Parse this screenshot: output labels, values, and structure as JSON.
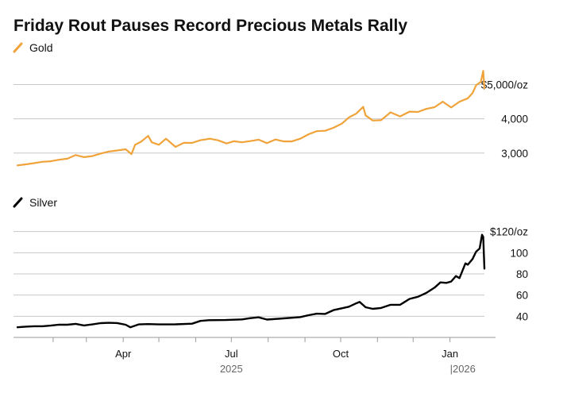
{
  "chart_data": {
    "title": "Friday Rout Pauses Record Precious Metals Rally",
    "type": "line",
    "x_axis": {
      "ticks": [
        "Apr",
        "Jul",
        "Oct",
        "Jan"
      ],
      "years": [
        "2025",
        "|2026"
      ]
    },
    "panels": [
      {
        "series_name": "Gold",
        "color": "#f0a33a",
        "unit_tick": "$5,000/oz",
        "ytick_labels": [
          "$5,000/oz",
          "4,000",
          "3,000"
        ],
        "yticks": [
          5000,
          4000,
          3000
        ],
        "ylim": [
          2600,
          5500
        ],
        "points": [
          [
            "2025-01-02",
            2640
          ],
          [
            "2025-01-09",
            2670
          ],
          [
            "2025-01-16",
            2705
          ],
          [
            "2025-01-23",
            2745
          ],
          [
            "2025-01-30",
            2760
          ],
          [
            "2025-02-06",
            2805
          ],
          [
            "2025-02-13",
            2835
          ],
          [
            "2025-02-20",
            2940
          ],
          [
            "2025-02-27",
            2880
          ],
          [
            "2025-03-06",
            2910
          ],
          [
            "2025-03-13",
            2985
          ],
          [
            "2025-03-20",
            3045
          ],
          [
            "2025-03-27",
            3075
          ],
          [
            "2025-04-03",
            3110
          ],
          [
            "2025-04-08",
            2970
          ],
          [
            "2025-04-11",
            3240
          ],
          [
            "2025-04-16",
            3330
          ],
          [
            "2025-04-22",
            3500
          ],
          [
            "2025-04-25",
            3315
          ],
          [
            "2025-05-01",
            3240
          ],
          [
            "2025-05-07",
            3420
          ],
          [
            "2025-05-15",
            3180
          ],
          [
            "2025-05-22",
            3300
          ],
          [
            "2025-05-29",
            3295
          ],
          [
            "2025-06-05",
            3375
          ],
          [
            "2025-06-13",
            3420
          ],
          [
            "2025-06-20",
            3370
          ],
          [
            "2025-06-27",
            3280
          ],
          [
            "2025-07-03",
            3345
          ],
          [
            "2025-07-10",
            3315
          ],
          [
            "2025-07-17",
            3350
          ],
          [
            "2025-07-24",
            3390
          ],
          [
            "2025-07-31",
            3290
          ],
          [
            "2025-08-07",
            3395
          ],
          [
            "2025-08-14",
            3340
          ],
          [
            "2025-08-21",
            3340
          ],
          [
            "2025-08-28",
            3420
          ],
          [
            "2025-09-04",
            3550
          ],
          [
            "2025-09-11",
            3640
          ],
          [
            "2025-09-18",
            3650
          ],
          [
            "2025-09-25",
            3740
          ],
          [
            "2025-10-02",
            3860
          ],
          [
            "2025-10-08",
            4040
          ],
          [
            "2025-10-14",
            4150
          ],
          [
            "2025-10-20",
            4350
          ],
          [
            "2025-10-22",
            4100
          ],
          [
            "2025-10-28",
            3950
          ],
          [
            "2025-11-04",
            3960
          ],
          [
            "2025-11-12",
            4190
          ],
          [
            "2025-11-20",
            4070
          ],
          [
            "2025-11-28",
            4210
          ],
          [
            "2025-12-05",
            4200
          ],
          [
            "2025-12-12",
            4290
          ],
          [
            "2025-12-19",
            4340
          ],
          [
            "2025-12-26",
            4500
          ],
          [
            "2026-01-02",
            4330
          ],
          [
            "2026-01-09",
            4500
          ],
          [
            "2026-01-16",
            4600
          ],
          [
            "2026-01-20",
            4750
          ],
          [
            "2026-01-23",
            4980
          ],
          [
            "2026-01-27",
            5080
          ],
          [
            "2026-01-29",
            5400
          ],
          [
            "2026-01-30",
            4890
          ]
        ]
      },
      {
        "series_name": "Silver",
        "color": "#000000",
        "unit_tick": "$120/oz",
        "ytick_labels": [
          "$120/oz",
          "100",
          "80",
          "60",
          "40"
        ],
        "yticks": [
          120,
          100,
          80,
          60,
          40
        ],
        "ylim": [
          20,
          125
        ],
        "points": [
          [
            "2025-01-02",
            29.6
          ],
          [
            "2025-01-09",
            30.2
          ],
          [
            "2025-01-16",
            30.6
          ],
          [
            "2025-01-23",
            30.6
          ],
          [
            "2025-01-30",
            31.2
          ],
          [
            "2025-02-06",
            32.1
          ],
          [
            "2025-02-13",
            32.0
          ],
          [
            "2025-02-20",
            32.8
          ],
          [
            "2025-02-27",
            31.3
          ],
          [
            "2025-03-06",
            32.3
          ],
          [
            "2025-03-13",
            33.5
          ],
          [
            "2025-03-20",
            33.8
          ],
          [
            "2025-03-27",
            33.6
          ],
          [
            "2025-04-03",
            32.0
          ],
          [
            "2025-04-07",
            29.6
          ],
          [
            "2025-04-14",
            32.3
          ],
          [
            "2025-04-22",
            32.6
          ],
          [
            "2025-05-01",
            32.3
          ],
          [
            "2025-05-15",
            32.4
          ],
          [
            "2025-05-29",
            33.0
          ],
          [
            "2025-06-05",
            35.6
          ],
          [
            "2025-06-12",
            36.3
          ],
          [
            "2025-06-26",
            36.4
          ],
          [
            "2025-07-10",
            37.0
          ],
          [
            "2025-07-17",
            38.2
          ],
          [
            "2025-07-24",
            39.0
          ],
          [
            "2025-07-31",
            36.9
          ],
          [
            "2025-08-14",
            38.0
          ],
          [
            "2025-08-28",
            39.2
          ],
          [
            "2025-09-04",
            41.0
          ],
          [
            "2025-09-11",
            42.4
          ],
          [
            "2025-09-18",
            42.2
          ],
          [
            "2025-09-25",
            45.8
          ],
          [
            "2025-10-02",
            47.5
          ],
          [
            "2025-10-08",
            49.0
          ],
          [
            "2025-10-14",
            52.2
          ],
          [
            "2025-10-17",
            53.5
          ],
          [
            "2025-10-22",
            48.5
          ],
          [
            "2025-10-28",
            47.0
          ],
          [
            "2025-11-04",
            47.8
          ],
          [
            "2025-11-12",
            50.8
          ],
          [
            "2025-11-20",
            50.8
          ],
          [
            "2025-11-28",
            56.4
          ],
          [
            "2025-12-05",
            58.4
          ],
          [
            "2025-12-12",
            62.0
          ],
          [
            "2025-12-19",
            67.0
          ],
          [
            "2025-12-24",
            72.0
          ],
          [
            "2025-12-29",
            71.5
          ],
          [
            "2026-01-02",
            72.8
          ],
          [
            "2026-01-06",
            78.0
          ],
          [
            "2026-01-09",
            76.0
          ],
          [
            "2026-01-14",
            90.0
          ],
          [
            "2026-01-16",
            88.7
          ],
          [
            "2026-01-20",
            94.0
          ],
          [
            "2026-01-23",
            101.0
          ],
          [
            "2026-01-26",
            104.0
          ],
          [
            "2026-01-28",
            117.0
          ],
          [
            "2026-01-29",
            115.0
          ],
          [
            "2026-01-30",
            85.0
          ]
        ]
      }
    ]
  }
}
